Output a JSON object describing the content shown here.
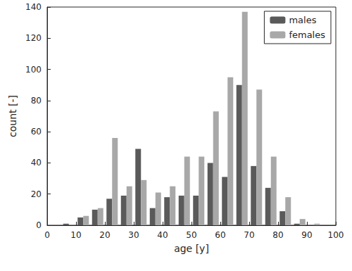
{
  "chart_data": {
    "type": "bar",
    "x_label": "age [y]",
    "y_label": "count [-]",
    "x": [
      7.5,
      12.5,
      17.5,
      22.5,
      27.5,
      32.5,
      37.5,
      42.5,
      47.5,
      52.5,
      57.5,
      62.5,
      67.5,
      72.5,
      77.5,
      82.5,
      87.5,
      92.5
    ],
    "series": [
      {
        "name": "males",
        "color": "#5a5a5a",
        "values": [
          1,
          5,
          10,
          17,
          19,
          49,
          11,
          18,
          19,
          19,
          40,
          31,
          90,
          38,
          24,
          9,
          1,
          0
        ]
      },
      {
        "name": "females",
        "color": "#a8a8a8",
        "values": [
          0,
          6,
          11,
          56,
          25,
          29,
          21,
          25,
          44,
          44,
          73,
          95,
          137,
          87,
          44,
          18,
          4,
          1
        ]
      }
    ],
    "xlim": [
      0,
      100
    ],
    "xticks": [
      0,
      10,
      20,
      30,
      40,
      50,
      60,
      70,
      80,
      90,
      100
    ],
    "ylim": [
      0,
      140
    ],
    "yticks": [
      0,
      20,
      40,
      60,
      80,
      100,
      120,
      140
    ],
    "grid": false,
    "legend": "northeast"
  }
}
